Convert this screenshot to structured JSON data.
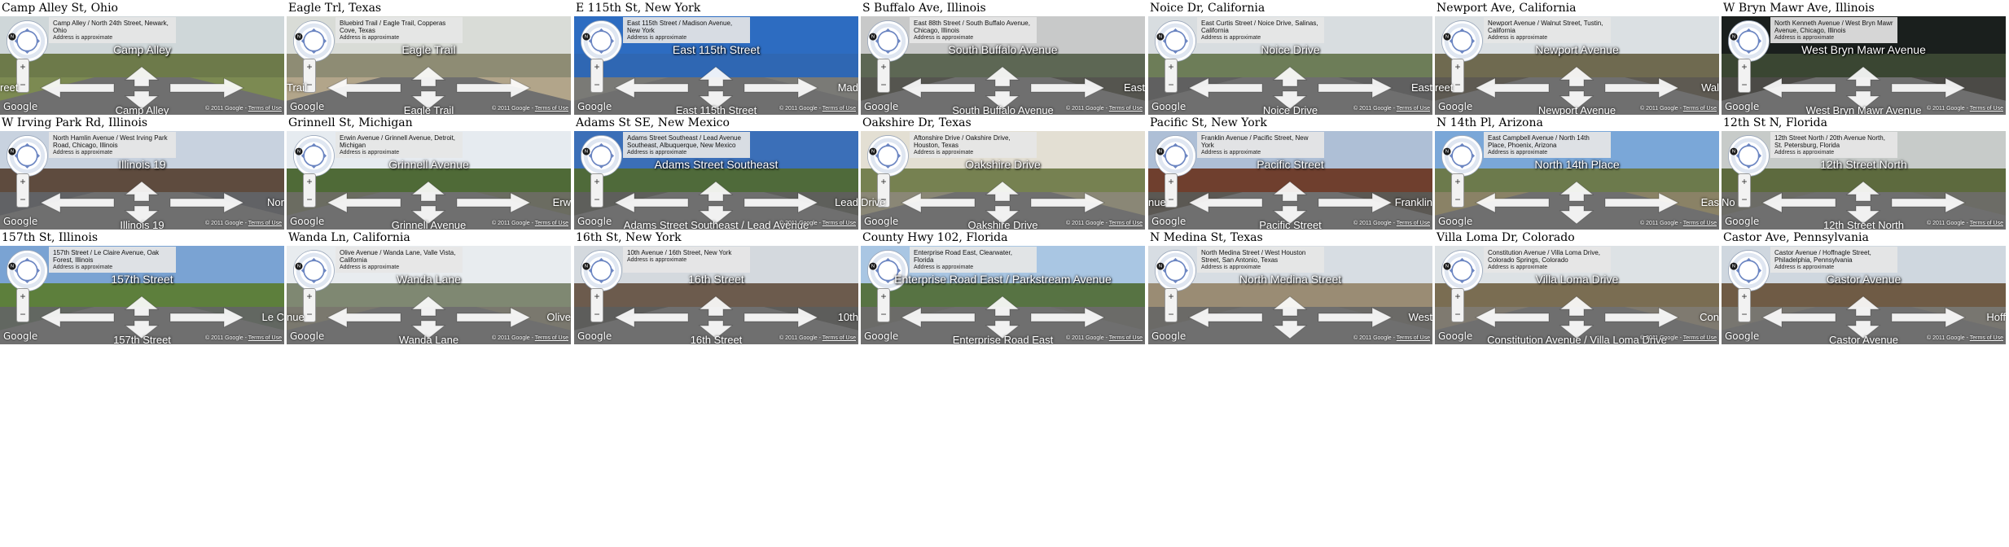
{
  "common": {
    "approx_text": "Address is approximate",
    "google_label": "Google",
    "copyright_label": "© 2011 Google -",
    "terms_label": "Terms of Use",
    "zoom_in_label": "+",
    "zoom_out_label": "−",
    "compass_north_label": "N"
  },
  "panels": [
    {
      "title": "Camp Alley St, Ohio",
      "address": "Camp Alley / North 24th Street, Newark, Ohio",
      "street": "Camp Alley",
      "left": "reet",
      "right": "",
      "bottom": "Camp Alley",
      "sky": "#cfd7d9",
      "mid": "#6d7a4a",
      "ground": "#7c8a52"
    },
    {
      "title": "Eagle Trl, Texas",
      "address": "Bluebird Trail / Eagle Trail, Copperas Cove, Texas",
      "street": "Eagle Trail",
      "left": "Trail",
      "right": "",
      "bottom": "Eagle Trail",
      "sky": "#d9dcd7",
      "mid": "#8e8c74",
      "ground": "#b2a58a"
    },
    {
      "title": "E 115th St, New York",
      "address": "East 115th Street / Madison Avenue, New York",
      "street": "East 115th Street",
      "left": "",
      "right": "Mad",
      "bottom": "East 115th Street",
      "sky": "#2d6cc1",
      "mid": "#2f67b3",
      "ground": "#7a7a76"
    },
    {
      "title": "S Buffalo Ave, Illinois",
      "address": "East 88th Street / South Buffalo Avenue, Chicago, Illinois",
      "street": "South Buffalo Avenue",
      "left": "",
      "right": "East",
      "bottom": "South Buffalo Avenue",
      "sky": "#c8c9c9",
      "mid": "#5d6754",
      "ground": "#55554f"
    },
    {
      "title": "Noice Dr, California",
      "address": "East Curtis Street / Noice Drive, Salinas, California",
      "street": "Noice Drive",
      "left": "",
      "right": "East",
      "bottom": "Noice Drive",
      "sky": "#d8dde0",
      "mid": "#6d7d58",
      "ground": "#606060"
    },
    {
      "title": "Newport Ave, California",
      "address": "Newport Avenue / Walnut Street, Tustin, California",
      "street": "Newport Avenue",
      "left": "reet",
      "right": "Wal",
      "bottom": "Newport Avenue",
      "sky": "#dbe0e3",
      "mid": "#6f6a50",
      "ground": "#5e5a52"
    },
    {
      "title": "W Bryn Mawr Ave, Illinois",
      "address": "North Kenneth Avenue / West Bryn Mawr Avenue, Chicago, Illinois",
      "street": "West Bryn Mawr Avenue",
      "left": "",
      "right": "",
      "bottom": "West Bryn Mawr Avenue",
      "sky": "#1a1f1d",
      "mid": "#3a4632",
      "ground": "#4b4a46"
    },
    {
      "title": "W Irving Park Rd, Illinois",
      "address": "North Hamlin Avenue / West Irving Park Road, Chicago, Illinois",
      "street": "Illinois 19",
      "left": "",
      "right": "Nor",
      "bottom": "Illinois 19",
      "sky": "#c8d2df",
      "mid": "#5e4b3e",
      "ground": "#616265"
    },
    {
      "title": "Grinnell St, Michigan",
      "address": "Erwin Avenue / Grinnell Avenue, Detroit, Michigan",
      "street": "Grinnell Avenue",
      "left": "",
      "right": "Erw",
      "bottom": "Grinnell Avenue",
      "sky": "#e6ebf0",
      "mid": "#4f6a37",
      "ground": "#6b6c61"
    },
    {
      "title": "Adams St SE, New Mexico",
      "address": "Adams Street Southeast / Lead Avenue Southeast, Albuquerque, New Mexico",
      "street": "Adams Street Southeast",
      "left": "",
      "right": "Lead",
      "bottom": "Adams Street Southeast / Lead Avenue",
      "sky": "#3b6fb8",
      "mid": "#4f6a3a",
      "ground": "#5e5f5b"
    },
    {
      "title": "Oakshire Dr, Texas",
      "address": "Aftonshire Drive / Oakshire Drive, Houston, Texas",
      "street": "Oakshire Drive",
      "left": "Drive",
      "right": "",
      "bottom": "Oakshire Drive",
      "sky": "#e3dfd3",
      "mid": "#768151",
      "ground": "#8a8776"
    },
    {
      "title": "Pacific St, New York",
      "address": "Franklin Avenue / Pacific Street, New York",
      "street": "Pacific Street",
      "left": "nue",
      "right": "Franklin",
      "bottom": "Pacific Street",
      "sky": "#aebfd6",
      "mid": "#6f3f2e",
      "ground": "#5b5853"
    },
    {
      "title": "N 14th Pl, Arizona",
      "address": "East Campbell Avenue / North 14th Place, Phoenix, Arizona",
      "street": "North 14th Place",
      "left": "",
      "right": "Eas",
      "bottom": "",
      "sky": "#7aa7d8",
      "mid": "#6c7a4c",
      "ground": "#8a8266"
    },
    {
      "title": "12th St N, Florida",
      "address": "12th Street North / 20th Avenue North, St. Petersburg, Florida",
      "street": "12th Street North",
      "left": "No",
      "right": "",
      "bottom": "12th Street North",
      "sky": "#c7cbc9",
      "mid": "#5d6a3e",
      "ground": "#6c6c66"
    },
    {
      "title": "157th St, Illinois",
      "address": "157th Street / Le Claire Avenue, Oak Forest, Illinois",
      "street": "157th Street",
      "left": "",
      "right": "Le C",
      "bottom": "157th Street",
      "sky": "#7aa3d3",
      "mid": "#5d7f3c",
      "ground": "#626761"
    },
    {
      "title": "Wanda Ln, California",
      "address": "Olive Avenue / Wanda Lane, Valle Vista, California",
      "street": "Wanda Lane",
      "left": "nue",
      "right": "Olive",
      "bottom": "Wanda Lane",
      "sky": "#e8ecef",
      "mid": "#7f8872",
      "ground": "#7a786e"
    },
    {
      "title": "16th St, New York",
      "address": "10th Avenue / 16th Street, New York",
      "street": "16th Street",
      "left": "",
      "right": "10th",
      "bottom": "16th Street",
      "sky": "#d4d9de",
      "mid": "#6c5b4d",
      "ground": "#5d5d5b"
    },
    {
      "title": "County Hwy 102, Florida",
      "address": "Enterprise Road East, Clearwater, Florida",
      "street": "Enterprise Road East / Parkstream Avenue",
      "left": "",
      "right": "",
      "bottom": "Enterprise Road East",
      "sky": "#a9c6e3",
      "mid": "#577343",
      "ground": "#6b6b68"
    },
    {
      "title": "N Medina St, Texas",
      "address": "North Medina Street / West Houston Street, San Antonio, Texas",
      "street": "North Medina Street",
      "left": "",
      "right": "West",
      "bottom": "",
      "sky": "#d7dde3",
      "mid": "#9a8c74",
      "ground": "#6b6a67"
    },
    {
      "title": "Villa Loma Dr, Colorado",
      "address": "Constitution Avenue / Villa Loma Drive, Colorado Springs, Colorado",
      "street": "Villa Loma Drive",
      "left": "",
      "right": "Con",
      "bottom": "Constitution Avenue / Villa Loma Drive",
      "sky": "#dde2e5",
      "mid": "#7a6d52",
      "ground": "#7f7a70"
    },
    {
      "title": "Castor Ave, Pennsylvania",
      "address": "Castor Avenue / Hoffnagle Street, Philadelphia, Pennsylvania",
      "street": "Castor Avenue",
      "left": "",
      "right": "Hoff",
      "bottom": "Castor Avenue",
      "sky": "#cfd7df",
      "mid": "#6f5b45",
      "ground": "#787670"
    }
  ]
}
